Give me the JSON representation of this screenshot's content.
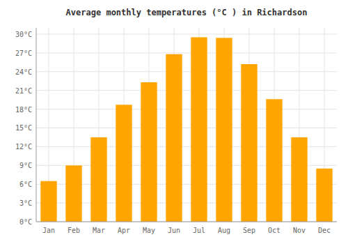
{
  "chart_data": {
    "type": "bar",
    "title": "Average monthly temperatures (°C ) in Richardson",
    "categories": [
      "Jan",
      "Feb",
      "Mar",
      "Apr",
      "May",
      "Jun",
      "Jul",
      "Aug",
      "Sep",
      "Oct",
      "Nov",
      "Dec"
    ],
    "values": [
      6.5,
      9.0,
      13.5,
      18.7,
      22.3,
      26.8,
      29.5,
      29.4,
      25.2,
      19.6,
      13.5,
      8.5
    ],
    "color": "#FFA500",
    "ylim": [
      0,
      31
    ],
    "yticks": [
      {
        "value": 0,
        "label": "0°C"
      },
      {
        "value": 3,
        "label": "3°C"
      },
      {
        "value": 6,
        "label": "6°C"
      },
      {
        "value": 9,
        "label": "9°C"
      },
      {
        "value": 12,
        "label": "12°C"
      },
      {
        "value": 15,
        "label": "15°C"
      },
      {
        "value": 18,
        "label": "18°C"
      },
      {
        "value": 21,
        "label": "21°C"
      },
      {
        "value": 24,
        "label": "24°C"
      },
      {
        "value": 27,
        "label": "27°C"
      },
      {
        "value": 30,
        "label": "30°C"
      }
    ],
    "grid": true
  }
}
